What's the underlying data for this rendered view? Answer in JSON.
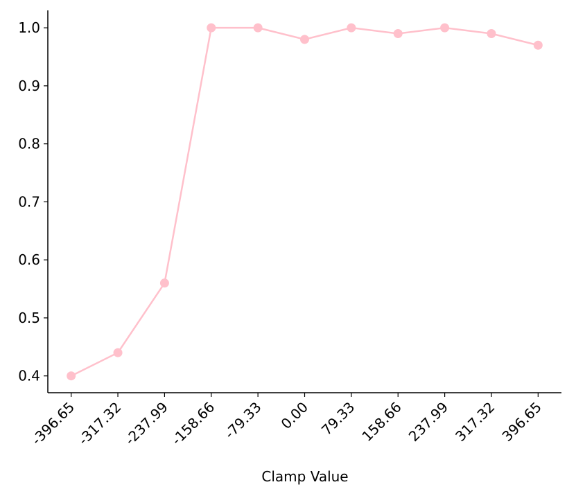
{
  "chart_data": {
    "type": "line",
    "x_label": "Clamp Value",
    "categories": [
      "-396.65",
      "-317.32",
      "-237.99",
      "-158.66",
      "-79.33",
      "0.00",
      "79.33",
      "158.66",
      "237.99",
      "317.32",
      "396.65"
    ],
    "values": [
      0.4,
      0.44,
      0.56,
      1.0,
      1.0,
      0.98,
      1.0,
      0.99,
      1.0,
      0.99,
      0.97
    ],
    "color": "#ffc0cb",
    "ylim": [
      0.371,
      1.03
    ],
    "yticks": [
      0.4,
      0.5,
      0.6,
      0.7,
      0.8,
      0.9,
      {
        "value": 1.0,
        "label": "1.0"
      }
    ],
    "grid": false
  }
}
